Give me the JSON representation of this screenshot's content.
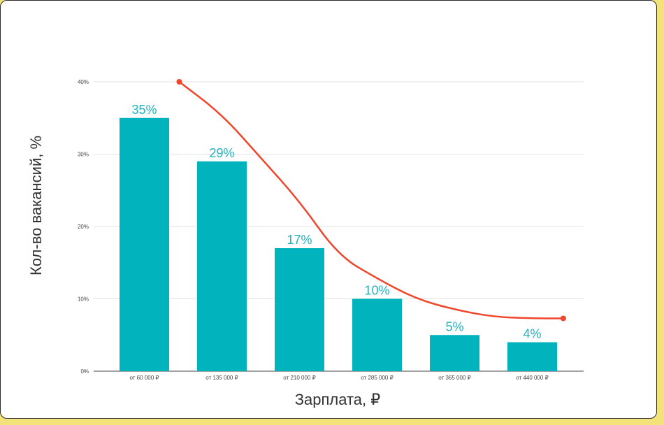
{
  "chart_data": {
    "type": "bar",
    "title": "",
    "xlabel": "Зарплата, ₽",
    "ylabel": "Кол-во вакансий, %",
    "categories": [
      "от 60 000 ₽",
      "от 135 000 ₽",
      "от 210 000 ₽",
      "от 285 000 ₽",
      "от 365 000 ₽",
      "от 440 000 ₽"
    ],
    "values": [
      35,
      29,
      17,
      10,
      5,
      4
    ],
    "data_labels": [
      "35%",
      "29%",
      "17%",
      "10%",
      "5%",
      "4%"
    ],
    "ylim": [
      0,
      40
    ],
    "yticks": [
      0,
      10,
      20,
      30,
      40
    ],
    "ytick_labels": [
      "0%",
      "10%",
      "20%",
      "30%",
      "40%"
    ],
    "grid": true,
    "legend": "none",
    "trend_line": {
      "x": [
        0.45,
        1.0,
        1.5,
        2.0,
        2.5,
        3.0,
        3.5,
        4.0,
        4.5,
        5.0,
        5.4
      ],
      "y": [
        40,
        35.5,
        29.5,
        23.5,
        16,
        12.8,
        10,
        8.5,
        7.5,
        7.3,
        7.3
      ]
    },
    "colors": {
      "bar": "#00b3bd",
      "data_label": "#1fb3bf",
      "trend": "#f0462c",
      "grid": "#e2e2e2",
      "axis": "#444444"
    }
  }
}
